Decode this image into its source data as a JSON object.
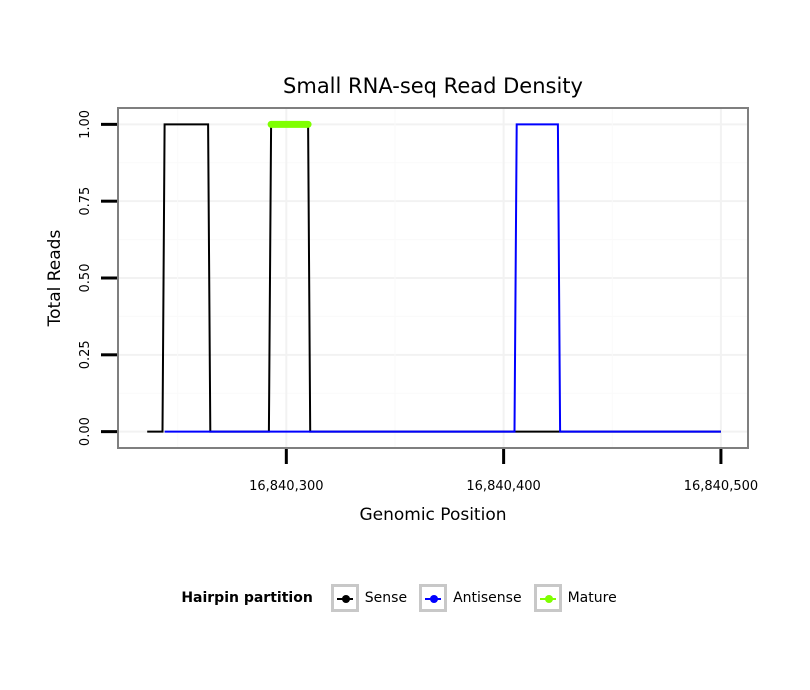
{
  "chart_data": {
    "type": "line",
    "title": "Small RNA-seq Read Density",
    "xlabel": "Genomic Position",
    "ylabel": "Total Reads",
    "xlim": [
      16840223,
      16840512
    ],
    "ylim": [
      -0.05,
      1.05
    ],
    "x_ticks": [
      16840300,
      16840400,
      16840500
    ],
    "x_tick_labels": [
      "16,840,300",
      "16,840,400",
      "16,840,500"
    ],
    "y_ticks": [
      0,
      0.25,
      0.5,
      0.75,
      1
    ],
    "y_tick_labels": [
      "0.00",
      "0.25",
      "0.50",
      "0.75",
      "1.00"
    ],
    "grid": true,
    "series": [
      {
        "name": "Sense",
        "color": "#000000",
        "x": [
          16840236,
          16840243,
          16840244,
          16840264,
          16840265,
          16840292,
          16840293,
          16840310,
          16840311,
          16840500
        ],
        "y": [
          0,
          0,
          1,
          1,
          0,
          0,
          1,
          1,
          0,
          0
        ]
      },
      {
        "name": "Antisense",
        "color": "#0000ff",
        "x": [
          16840244,
          16840265,
          16840292,
          16840311,
          16840405,
          16840406,
          16840425,
          16840426,
          16840500
        ],
        "y": [
          0,
          0,
          0,
          0,
          0,
          1,
          1,
          0,
          0
        ]
      },
      {
        "name": "Mature",
        "color": "#7fff00",
        "x": [
          16840293,
          16840310
        ],
        "y": [
          1,
          1
        ]
      }
    ],
    "legend": {
      "title": "Hairpin partition",
      "position": "bottom",
      "entries": [
        "Sense",
        "Antisense",
        "Mature"
      ]
    }
  }
}
